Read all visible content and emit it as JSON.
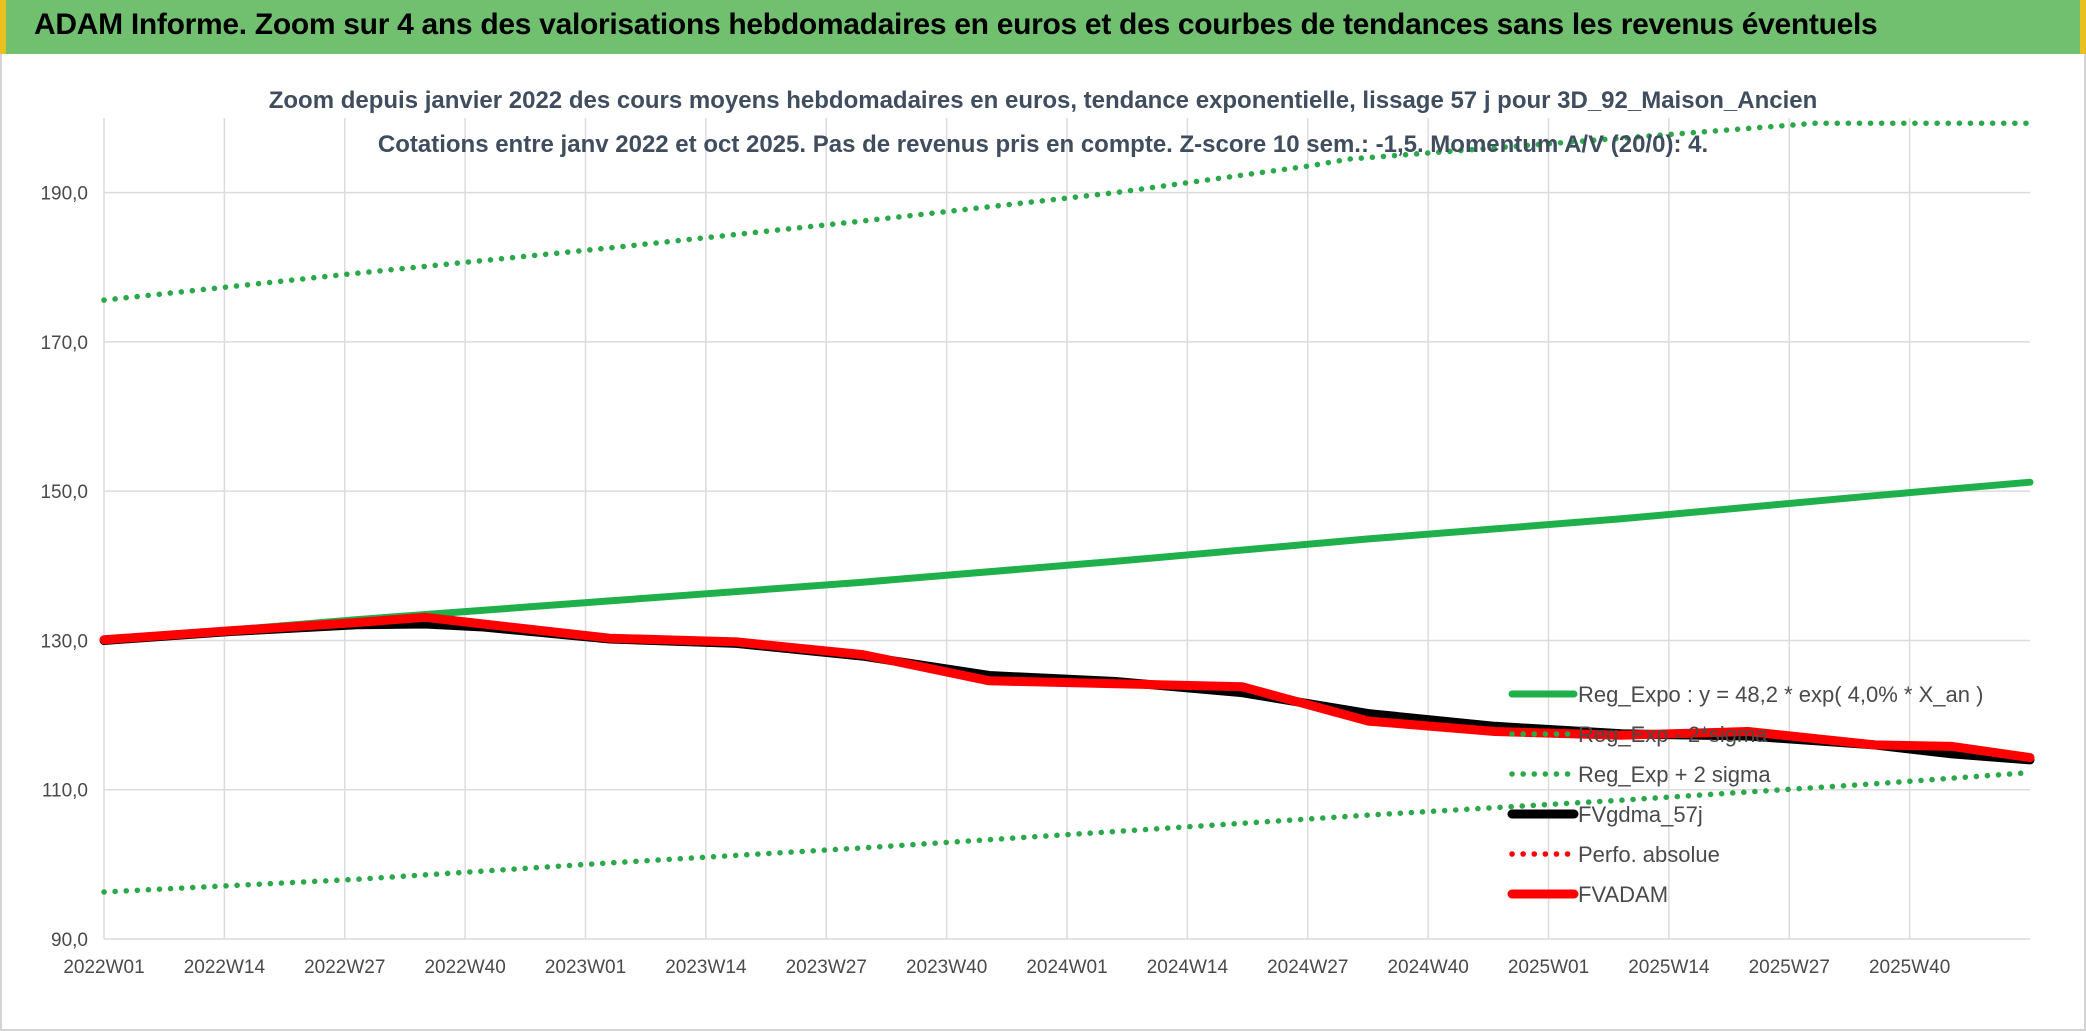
{
  "banner": {
    "title": "ADAM Informe. Zoom sur 4 ans des valorisations hebdomadaires en euros et des courbes de tendances sans les revenus éventuels"
  },
  "colors": {
    "banner_bg": "#70c070",
    "banner_border": "#e8c020",
    "trend_green": "#1fb04b",
    "band_green": "#2aa84a",
    "fvgdma_black": "#000000",
    "fvadam_red": "#ff0000",
    "title_text": "#3f4d5e"
  },
  "chart_data": {
    "type": "line",
    "title": "Zoom depuis janvier 2022 des cours moyens hebdomadaires en euros, tendance exponentielle, lissage 57 j pour 3D_92_Maison_Ancien",
    "subtitle": "Cotations entre janv 2022 et oct 2025. Pas de revenus pris en compte. Z-score 10 sem.: -1,5. Momentum A/V (20/0): 4.",
    "xlabel": "",
    "ylabel": "",
    "x_ticks": [
      "2022W01",
      "2022W14",
      "2022W27",
      "2022W40",
      "2023W01",
      "2023W14",
      "2023W27",
      "2023W40",
      "2024W01",
      "2024W14",
      "2024W27",
      "2024W40",
      "2025W01",
      "2025W14",
      "2025W27",
      "2025W40"
    ],
    "y_ticks": [
      "90,0",
      "110,0",
      "130,0",
      "150,0",
      "170,0",
      "190,0"
    ],
    "ylim": [
      90,
      200
    ],
    "x_unit": "weeks since 2022W01",
    "xlim": [
      0,
      198
    ],
    "grid": true,
    "legend_position": "bottom-right",
    "series": [
      {
        "name": "Reg_Expo : y = 48,2 * exp( 4,0% *  X_an )",
        "style": "solid",
        "color": "#1fb04b",
        "points": [
          [
            0,
            130.0
          ],
          [
            26,
            132.8
          ],
          [
            52,
            135.3
          ],
          [
            78,
            137.8
          ],
          [
            104,
            140.6
          ],
          [
            130,
            143.6
          ],
          [
            156,
            146.3
          ],
          [
            182,
            149.4
          ],
          [
            198,
            151.2
          ]
        ]
      },
      {
        "name": "Reg_Exp - 2*sigma",
        "style": "dotted",
        "color": "#2aa84a",
        "points": [
          [
            0,
            96.3
          ],
          [
            26,
            98.0
          ],
          [
            52,
            100.2
          ],
          [
            78,
            102.2
          ],
          [
            104,
            104.4
          ],
          [
            130,
            106.6
          ],
          [
            156,
            108.6
          ],
          [
            182,
            110.8
          ],
          [
            198,
            112.3
          ]
        ]
      },
      {
        "name": "Reg_Exp + 2 sigma",
        "style": "dotted",
        "color": "#2aa84a",
        "points": [
          [
            0,
            175.6
          ],
          [
            26,
            179.2
          ],
          [
            52,
            182.6
          ],
          [
            78,
            186.2
          ],
          [
            104,
            190.0
          ],
          [
            124,
            193.6
          ],
          [
            128,
            194.5
          ],
          [
            176,
            199.3
          ],
          [
            198,
            199.3
          ]
        ]
      },
      {
        "name": "FVgdma_57j",
        "style": "solid",
        "color": "#000000",
        "points": [
          [
            0,
            130.0
          ],
          [
            13,
            131.2
          ],
          [
            26,
            132.1
          ],
          [
            33,
            132.2
          ],
          [
            39,
            131.8
          ],
          [
            52,
            130.2
          ],
          [
            65,
            129.6
          ],
          [
            78,
            127.9
          ],
          [
            91,
            125.3
          ],
          [
            104,
            124.5
          ],
          [
            117,
            123.0
          ],
          [
            130,
            120.2
          ],
          [
            143,
            118.5
          ],
          [
            156,
            117.5
          ],
          [
            169,
            117.2
          ],
          [
            182,
            116.0
          ],
          [
            190,
            114.8
          ],
          [
            198,
            114.0
          ]
        ]
      },
      {
        "name": "Perfo. absolue",
        "style": "dotted",
        "color": "#ff0000",
        "points": []
      },
      {
        "name": "FVADAM",
        "style": "solid",
        "color": "#ff0000",
        "points": [
          [
            0,
            130.1
          ],
          [
            13,
            131.3
          ],
          [
            26,
            132.4
          ],
          [
            33,
            133.1
          ],
          [
            39,
            132.2
          ],
          [
            52,
            130.3
          ],
          [
            65,
            129.8
          ],
          [
            78,
            128.1
          ],
          [
            91,
            124.6
          ],
          [
            104,
            124.2
          ],
          [
            117,
            123.8
          ],
          [
            130,
            119.2
          ],
          [
            143,
            117.8
          ],
          [
            156,
            117.3
          ],
          [
            169,
            117.8
          ],
          [
            182,
            116.0
          ],
          [
            190,
            115.8
          ],
          [
            198,
            114.3
          ]
        ]
      }
    ]
  }
}
